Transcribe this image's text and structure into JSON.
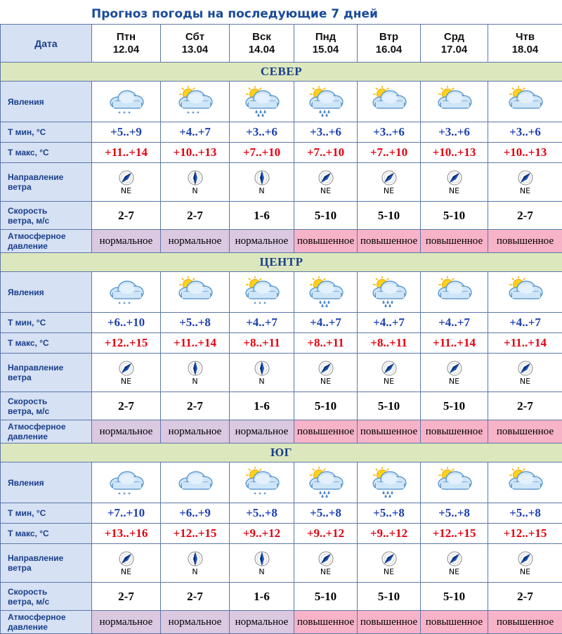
{
  "title": "Прогноз погоды на последующие 7 дней",
  "date_label": "Дата",
  "row_labels": {
    "phen": "Явления",
    "tmin": "Т мин, °С",
    "tmax": "Т макс, °С",
    "dir1": "Направление",
    "dir2": "ветра",
    "speed1": "Скорость",
    "speed2": "ветра, м/с",
    "press1": "Атмосферное",
    "press2": "давление"
  },
  "days": [
    {
      "name": "Птн",
      "date": "12.04"
    },
    {
      "name": "Сбт",
      "date": "13.04"
    },
    {
      "name": "Вск",
      "date": "14.04"
    },
    {
      "name": "Пнд",
      "date": "15.04"
    },
    {
      "name": "Втр",
      "date": "16.04"
    },
    {
      "name": "Срд",
      "date": "17.04"
    },
    {
      "name": "Чтв",
      "date": "18.04"
    }
  ],
  "colors": {
    "normal": "#dac9e1",
    "elevated": "#f7b3c8",
    "region_bg": "#dce7bd",
    "label_bg": "#d6e1f4"
  },
  "regions": [
    {
      "name": "СЕВЕР",
      "icons": [
        "cloud-drizzle-icon",
        "sun-cloud-drizzle-icon",
        "sun-cloud-rain-icon",
        "sun-cloud-rain-icon",
        "sun-cloud-icon",
        "sun-cloud-icon",
        "sun-cloud-icon"
      ],
      "tmin": [
        "+5..+9",
        "+4..+7",
        "+3..+6",
        "+3..+6",
        "+3..+6",
        "+3..+6",
        "+3..+6"
      ],
      "tmax": [
        "+11..+14",
        "+10..+13",
        "+7..+10",
        "+7..+10",
        "+7..+10",
        "+10..+13",
        "+10..+13"
      ],
      "wind_dir": [
        "NE",
        "N",
        "N",
        "NE",
        "NE",
        "NE",
        "NE"
      ],
      "wind_speed": [
        "2-7",
        "2-7",
        "1-6",
        "5-10",
        "5-10",
        "5-10",
        "2-7"
      ],
      "pressure": [
        "нормальное",
        "нормальное",
        "нормальное",
        "повышенное",
        "повышенное",
        "повышенное",
        "повышенное"
      ]
    },
    {
      "name": "ЦЕНТР",
      "icons": [
        "cloud-drizzle-icon",
        "sun-cloud-icon",
        "sun-cloud-drizzle-icon",
        "sun-cloud-rain-icon",
        "sun-cloud-rain-icon",
        "sun-cloud-icon",
        "sun-cloud-icon"
      ],
      "tmin": [
        "+6..+10",
        "+5..+8",
        "+4..+7",
        "+4..+7",
        "+4..+7",
        "+4..+7",
        "+4..+7"
      ],
      "tmax": [
        "+12..+15",
        "+11..+14",
        "+8..+11",
        "+8..+11",
        "+8..+11",
        "+11..+14",
        "+11..+14"
      ],
      "wind_dir": [
        "NE",
        "N",
        "N",
        "NE",
        "NE",
        "NE",
        "NE"
      ],
      "wind_speed": [
        "2-7",
        "2-7",
        "1-6",
        "5-10",
        "5-10",
        "5-10",
        "2-7"
      ],
      "pressure": [
        "нормальное",
        "нормальное",
        "нормальное",
        "повышенное",
        "повышенное",
        "повышенное",
        "повышенное"
      ]
    },
    {
      "name": "ЮГ",
      "icons": [
        "cloud-drizzle-icon",
        "cloud-icon",
        "sun-cloud-drizzle-icon",
        "sun-cloud-rain-icon",
        "sun-cloud-rain-icon",
        "sun-cloud-icon",
        "sun-cloud-icon"
      ],
      "tmin": [
        "+7..+10",
        "+6..+9",
        "+5..+8",
        "+5..+8",
        "+5..+8",
        "+5..+8",
        "+5..+8"
      ],
      "tmax": [
        "+13..+16",
        "+12..+15",
        "+9..+12",
        "+9..+12",
        "+9..+12",
        "+12..+15",
        "+12..+15"
      ],
      "wind_dir": [
        "NE",
        "N",
        "N",
        "NE",
        "NE",
        "NE",
        "NE"
      ],
      "wind_speed": [
        "2-7",
        "2-7",
        "1-6",
        "5-10",
        "5-10",
        "5-10",
        "2-7"
      ],
      "pressure": [
        "нормальное",
        "нормальное",
        "нормальное",
        "повышенное",
        "повышенное",
        "повышенное",
        "повышенное"
      ]
    }
  ]
}
